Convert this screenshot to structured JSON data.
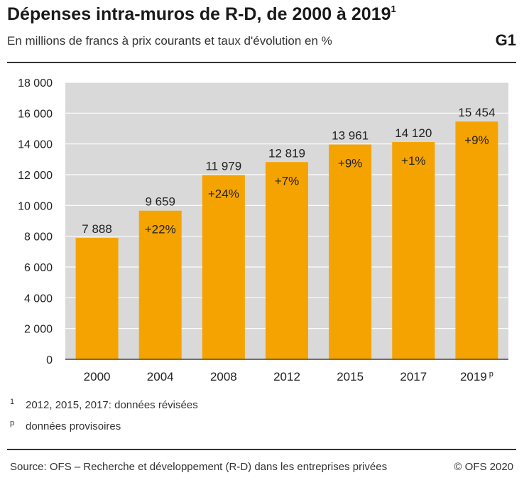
{
  "header": {
    "title": "Dépenses intra-muros de R-D, de 2000 à 2019",
    "title_sup": "1",
    "subtitle": "En millions de francs à prix courants et taux d'évolution en %",
    "tag": "G1"
  },
  "colors": {
    "bar": "#f5a300",
    "plot_bg": "#d9d9d9",
    "grid": "#ffffff",
    "text": "#222222"
  },
  "chart_data": {
    "type": "bar",
    "categories": [
      "2000",
      "2004",
      "2008",
      "2012",
      "2015",
      "2017",
      "2019"
    ],
    "category_superscripts": [
      "",
      "",
      "",
      "",
      "",
      "",
      "p"
    ],
    "values": [
      7888,
      9659,
      11979,
      12819,
      13961,
      14120,
      15454
    ],
    "value_labels": [
      "7 888",
      "9 659",
      "11 979",
      "12 819",
      "13 961",
      "14 120",
      "15 454"
    ],
    "growth_labels": [
      "",
      "+22%",
      "+24%",
      "+7%",
      "+9%",
      "+1%",
      "+9%"
    ],
    "ylim": [
      0,
      18000
    ],
    "yticks": [
      0,
      2000,
      4000,
      6000,
      8000,
      10000,
      12000,
      14000,
      16000,
      18000
    ],
    "ytick_labels": [
      "0",
      "2 000",
      "4 000",
      "6 000",
      "8 000",
      "10 000",
      "12 000",
      "14 000",
      "16 000",
      "18 000"
    ],
    "grid": true,
    "xlabel": "",
    "ylabel": ""
  },
  "notes": [
    {
      "mark": "1",
      "text": "2012, 2015, 2017: données révisées"
    },
    {
      "mark": "p",
      "text": "données provisoires"
    }
  ],
  "footer": {
    "source": "Source: OFS – Recherche et développement (R-D) dans les entreprises privées",
    "copyright": "© OFS 2020"
  }
}
